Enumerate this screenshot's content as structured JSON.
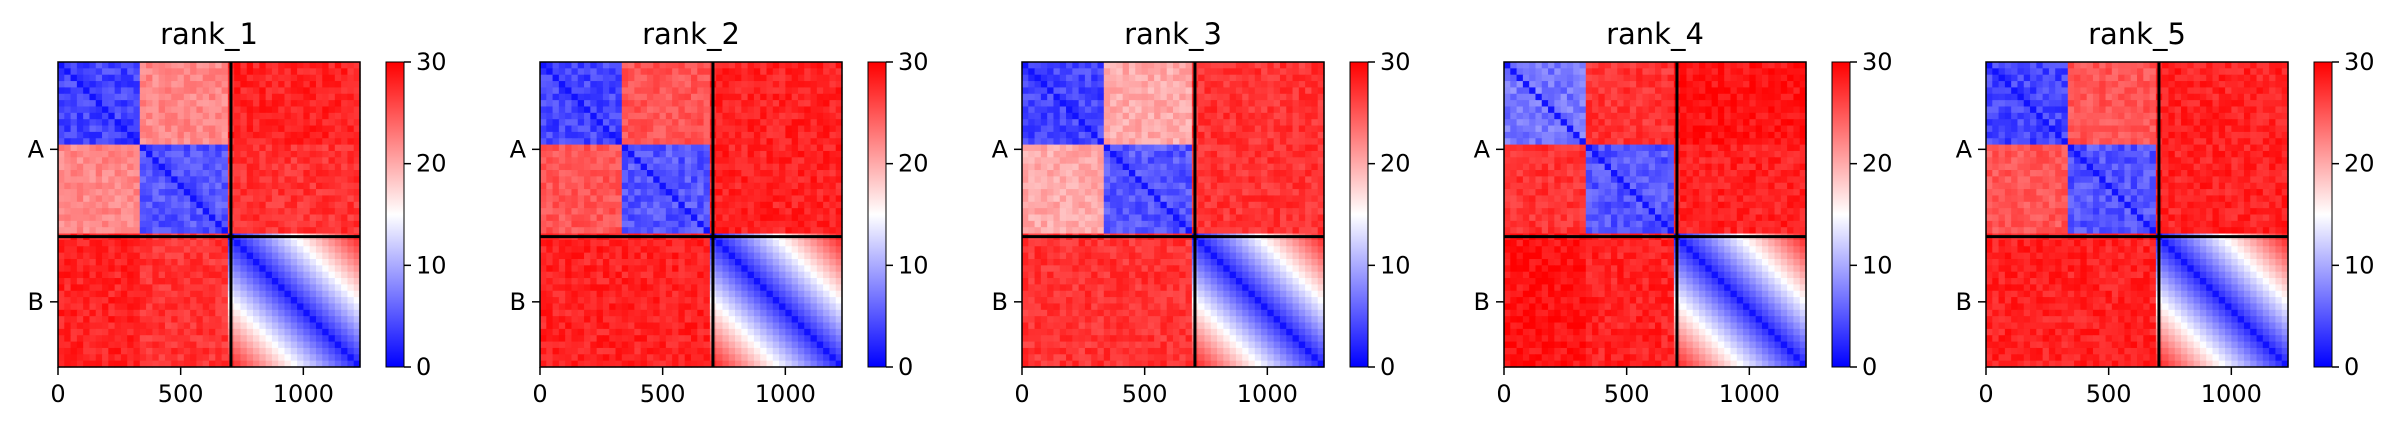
{
  "chart_data": [
    {
      "type": "heatmap",
      "title": "rank_1",
      "n": 1231,
      "x_ticks": [
        0,
        500,
        1000
      ],
      "x_tick_labels": [
        "0",
        "500",
        "1000"
      ],
      "y_category_labels": [
        "A",
        "B"
      ],
      "chain_boundaries": [
        0,
        705,
        1231
      ],
      "domain_boundaries": [
        0,
        322,
        705,
        1231
      ],
      "colorbar": {
        "min": 0,
        "max": 30,
        "ticks": [
          0,
          10,
          20,
          30
        ],
        "tick_labels": [
          "0",
          "10",
          "20",
          "30"
        ],
        "colormap": [
          "#0000ff",
          "#ffffff",
          "#ff0000"
        ]
      },
      "block_means": [
        [
          4,
          22,
          28,
          29
        ],
        [
          22,
          5,
          27,
          28
        ],
        [
          28,
          27,
          6,
          29
        ],
        [
          29,
          28,
          29,
          20
        ]
      ]
    },
    {
      "type": "heatmap",
      "title": "rank_2",
      "n": 1231,
      "x_ticks": [
        0,
        500,
        1000
      ],
      "x_tick_labels": [
        "0",
        "500",
        "1000"
      ],
      "y_category_labels": [
        "A",
        "B"
      ],
      "chain_boundaries": [
        0,
        705,
        1231
      ],
      "domain_boundaries": [
        0,
        322,
        705,
        1231
      ],
      "colorbar": {
        "min": 0,
        "max": 30,
        "ticks": [
          0,
          10,
          20,
          30
        ],
        "tick_labels": [
          "0",
          "10",
          "20",
          "30"
        ],
        "colormap": [
          "#0000ff",
          "#ffffff",
          "#ff0000"
        ]
      },
      "block_means": [
        [
          4,
          25,
          28,
          29
        ],
        [
          25,
          5,
          28,
          28
        ],
        [
          28,
          28,
          6,
          29
        ],
        [
          29,
          28,
          29,
          20
        ]
      ]
    },
    {
      "type": "heatmap",
      "title": "rank_3",
      "n": 1231,
      "x_ticks": [
        0,
        500,
        1000
      ],
      "x_tick_labels": [
        "0",
        "500",
        "1000"
      ],
      "y_category_labels": [
        "A",
        "B"
      ],
      "chain_boundaries": [
        0,
        705,
        1231
      ],
      "domain_boundaries": [
        0,
        322,
        705,
        1231
      ],
      "colorbar": {
        "min": 0,
        "max": 30,
        "ticks": [
          0,
          10,
          20,
          30
        ],
        "tick_labels": [
          "0",
          "10",
          "20",
          "30"
        ],
        "colormap": [
          "#0000ff",
          "#ffffff",
          "#ff0000"
        ]
      },
      "block_means": [
        [
          4,
          20,
          27,
          29
        ],
        [
          20,
          5,
          27,
          28
        ],
        [
          27,
          27,
          6,
          29
        ],
        [
          29,
          28,
          29,
          20
        ]
      ]
    },
    {
      "type": "heatmap",
      "title": "rank_4",
      "n": 1231,
      "x_ticks": [
        0,
        500,
        1000
      ],
      "x_tick_labels": [
        "0",
        "500",
        "1000"
      ],
      "y_category_labels": [
        "A",
        "B"
      ],
      "chain_boundaries": [
        0,
        705,
        1231
      ],
      "domain_boundaries": [
        0,
        322,
        705,
        1231
      ],
      "colorbar": {
        "min": 0,
        "max": 30,
        "ticks": [
          0,
          10,
          20,
          30
        ],
        "tick_labels": [
          "0",
          "10",
          "20",
          "30"
        ],
        "colormap": [
          "#0000ff",
          "#ffffff",
          "#ff0000"
        ]
      },
      "block_means": [
        [
          7,
          27,
          29,
          29
        ],
        [
          27,
          5,
          28,
          28
        ],
        [
          29,
          28,
          6,
          29
        ],
        [
          29,
          28,
          29,
          20
        ]
      ]
    },
    {
      "type": "heatmap",
      "title": "rank_5",
      "n": 1231,
      "x_ticks": [
        0,
        500,
        1000
      ],
      "x_tick_labels": [
        "0",
        "500",
        "1000"
      ],
      "y_category_labels": [
        "A",
        "B"
      ],
      "chain_boundaries": [
        0,
        705,
        1231
      ],
      "domain_boundaries": [
        0,
        322,
        705,
        1231
      ],
      "colorbar": {
        "min": 0,
        "max": 30,
        "ticks": [
          0,
          10,
          20,
          30
        ],
        "tick_labels": [
          "0",
          "10",
          "20",
          "30"
        ],
        "colormap": [
          "#0000ff",
          "#ffffff",
          "#ff0000"
        ]
      },
      "block_means": [
        [
          4,
          25,
          28,
          29
        ],
        [
          25,
          5,
          28,
          28
        ],
        [
          28,
          28,
          6,
          29
        ],
        [
          29,
          28,
          29,
          20
        ]
      ]
    }
  ]
}
